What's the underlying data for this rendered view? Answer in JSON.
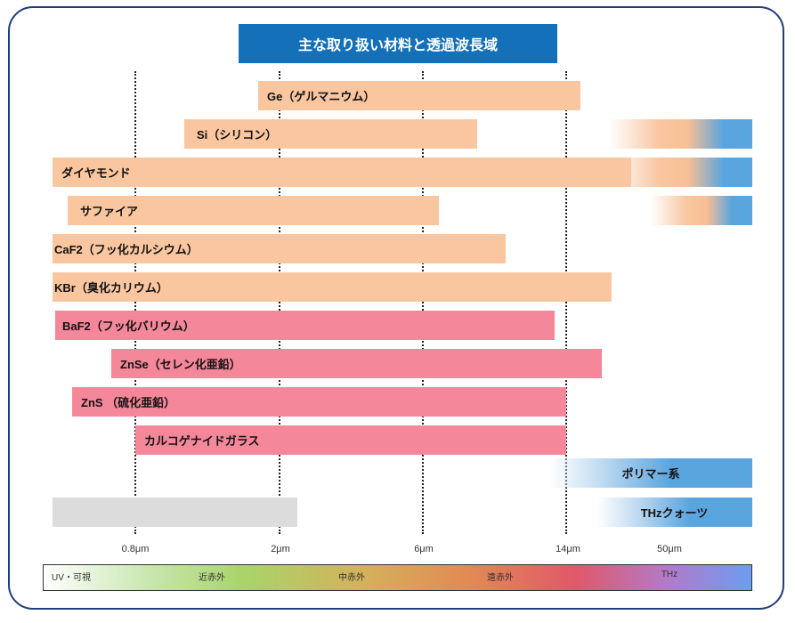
{
  "title": "主な取り扱い材料と透過波長域",
  "chart_data": {
    "type": "bar",
    "axis_ticks": [
      "0.8μm",
      "2μm",
      "6μm",
      "14μm",
      "50μm"
    ],
    "series": [
      {
        "label": "Ge（ゲルマニウム）",
        "group": "orange",
        "start": 1.9,
        "end": 16
      },
      {
        "label": "Si（シリコン）",
        "group": "orange",
        "start": 1.1,
        "end": 9,
        "thz": "orange-to-blue"
      },
      {
        "label": "ダイヤモンド",
        "group": "orange",
        "start": 0.22,
        "end": 50,
        "thz": "orange-to-blue"
      },
      {
        "label": "サファイア",
        "group": "orange",
        "start": 0.25,
        "end": 6,
        "thz": "orange-to-blue"
      },
      {
        "label": "CaF2（フッ化カルシウム）",
        "group": "orange",
        "start": 0.22,
        "end": 11
      },
      {
        "label": "KBr（臭化カリウム）",
        "group": "orange",
        "start": 0.22,
        "end": 26
      },
      {
        "label": "BaF2（フッ化バリウム）",
        "group": "pink",
        "start": 0.23,
        "end": 13
      },
      {
        "label": "ZnSe（セレン化亜鉛）",
        "group": "pink",
        "start": 0.55,
        "end": 22
      },
      {
        "label": "ZnS （硫化亜鉛）",
        "group": "pink",
        "start": 0.37,
        "end": 14
      },
      {
        "label": "カルコゲナイドガラス",
        "group": "pink",
        "start": 0.8,
        "end": 14
      },
      {
        "label": "ポリマー系",
        "group": "blue",
        "start": 14,
        "end": 50
      },
      {
        "label": "THzクォーツ",
        "group": "blue",
        "start": 20,
        "end": 50,
        "extra_gray": {
          "start": 0.22,
          "end": 2.1
        }
      }
    ],
    "bands": [
      "UV・可視",
      "近赤外",
      "中赤外",
      "遠赤外",
      "THz"
    ]
  }
}
